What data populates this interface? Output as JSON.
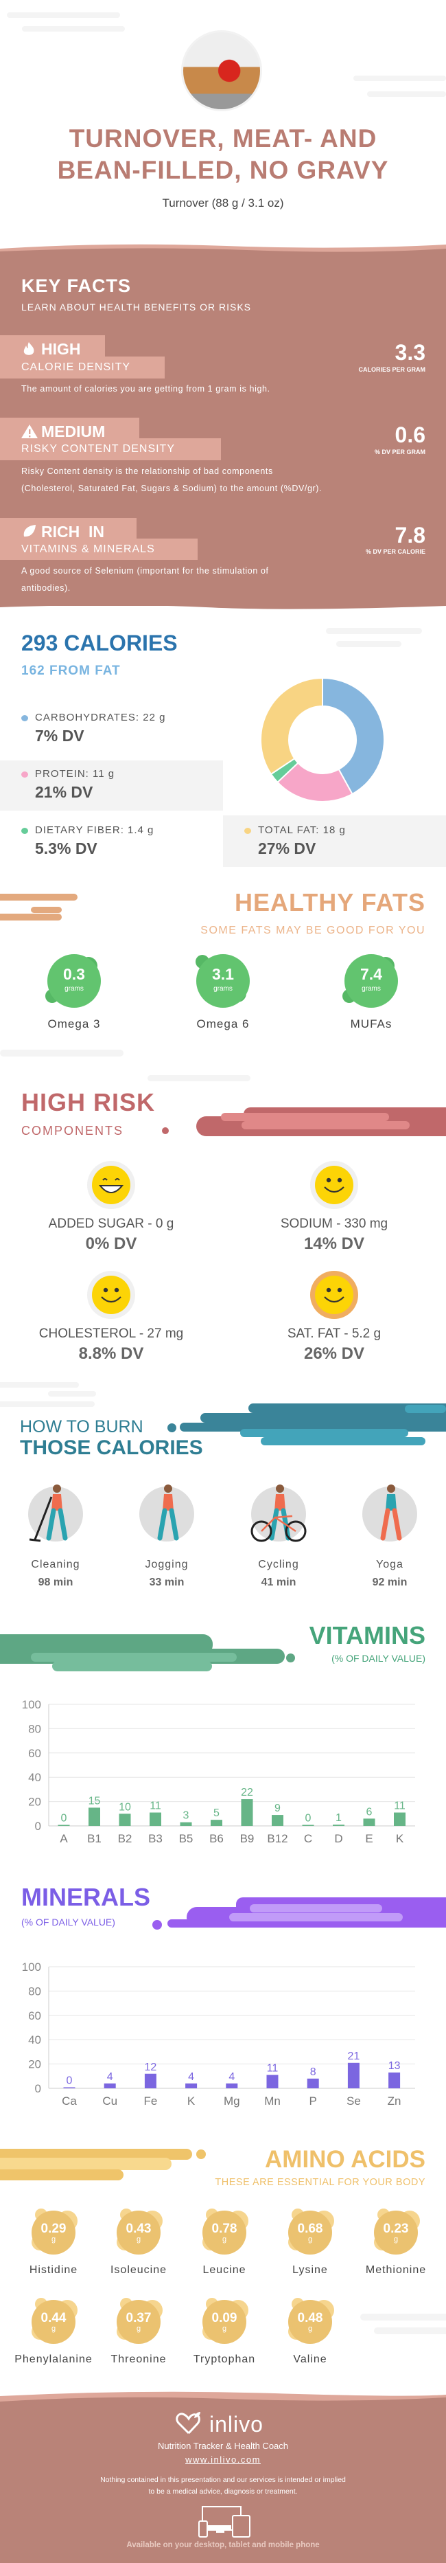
{
  "header": {
    "title_line1": "TURNOVER, MEAT- AND",
    "title_line2": "BEAN-FILLED, NO GRAVY",
    "serving": "Turnover (88 g / 3.1 oz)"
  },
  "key_facts": {
    "title": "KEY FACTS",
    "subtitle": "LEARN ABOUT HEALTH BENEFITS OR RISKS",
    "items": [
      {
        "icon": "fire-icon",
        "level": "HIGH",
        "label": "CALORIE DENSITY",
        "value": "3.3",
        "unit": "CALORIES PER GRAM",
        "description": "The amount of calories you are getting from 1 gram is high."
      },
      {
        "icon": "warning-icon",
        "level": "MEDIUM",
        "label": "RISKY CONTENT DENSITY",
        "value": "0.6",
        "unit": "% DV PER GRAM",
        "description_line1": "Risky Content density is the relationship of bad components",
        "description_line2": "(Cholesterol, Saturated Fat, Sugars & Sodium) to the amount (%DV/gr)."
      },
      {
        "icon": "leaf-icon",
        "level": "RICH  IN",
        "label": "VITAMINS & MINERALS",
        "value": "7.8",
        "unit": "% DV PER CALORIE",
        "description_line1": "A good source of Selenium (important for the stimulation of",
        "description_line2": "antibodies)."
      }
    ]
  },
  "calories": {
    "total": "293 CALORIES",
    "from_fat": "162 FROM FAT",
    "macros": [
      {
        "label": "CARBOHYDRATES: 22 g",
        "dv": "7% DV"
      },
      {
        "label": "PROTEIN: 11 g",
        "dv": "21% DV"
      },
      {
        "label": "DIETARY FIBER: 1.4 g",
        "dv": "5.3% DV"
      },
      {
        "label": "TOTAL FAT: 18 g",
        "dv": "27% DV"
      }
    ]
  },
  "healthy_fats": {
    "title": "HEALTHY FATS",
    "subtitle": "SOME FATS MAY BE GOOD FOR YOU",
    "items": [
      {
        "value": "0.3",
        "unit": "grams",
        "label": "Omega 3"
      },
      {
        "value": "3.1",
        "unit": "grams",
        "label": "Omega 6"
      },
      {
        "value": "7.4",
        "unit": "grams",
        "label": "MUFAs"
      }
    ]
  },
  "high_risk": {
    "title": "HIGH RISK",
    "subtitle": "COMPONENTS",
    "items": [
      {
        "label": "ADDED SUGAR - 0 g",
        "dv": "0% DV",
        "icon": "grinning-face-icon"
      },
      {
        "label": "SODIUM - 330 mg",
        "dv": "14% DV",
        "icon": "smiling-face-icon"
      },
      {
        "label": "CHOLESTEROL - 27 mg",
        "dv": "8.8% DV",
        "icon": "smiling-face-icon"
      },
      {
        "label": "SAT. FAT - 5.2 g",
        "dv": "26% DV",
        "icon": "smiling-face-icon"
      }
    ]
  },
  "burn": {
    "title_line1": "HOW TO BURN",
    "title_line2": "THOSE CALORIES",
    "activities": [
      {
        "name": "Cleaning",
        "duration": "98 min"
      },
      {
        "name": "Jogging",
        "duration": "33 min"
      },
      {
        "name": "Cycling",
        "duration": "41 min"
      },
      {
        "name": "Yoga",
        "duration": "92 min"
      }
    ]
  },
  "vitamins": {
    "title": "VITAMINS",
    "subtitle": "(% OF DAILY VALUE)"
  },
  "minerals": {
    "title": "MINERALS",
    "subtitle": "(% OF DAILY VALUE)"
  },
  "amino": {
    "title": "AMINO ACIDS",
    "subtitle": "THESE ARE ESSENTIAL FOR YOUR BODY",
    "items": [
      {
        "value": "0.29",
        "unit": "g",
        "name": "Histidine"
      },
      {
        "value": "0.43",
        "unit": "g",
        "name": "Isoleucine"
      },
      {
        "value": "0.78",
        "unit": "g",
        "name": "Leucine"
      },
      {
        "value": "0.68",
        "unit": "g",
        "name": "Lysine"
      },
      {
        "value": "0.23",
        "unit": "g",
        "name": "Methionine"
      },
      {
        "value": "0.44",
        "unit": "g",
        "name": "Phenylalanine"
      },
      {
        "value": "0.37",
        "unit": "g",
        "name": "Threonine"
      },
      {
        "value": "0.09",
        "unit": "g",
        "name": "Tryptophan"
      },
      {
        "value": "0.48",
        "unit": "g",
        "name": "Valine"
      }
    ]
  },
  "footer": {
    "brand": "inlivo",
    "tagline": "Nutrition Tracker & Health Coach",
    "url": "www.inlivo.com",
    "disclaimer_line1": "Nothing contained in this presentation and our services is intended or implied",
    "disclaimer_line2": "to be a medical advice, diagnosis or treatment.",
    "available": "Available on your desktop, tablet and mobile phone"
  },
  "colors": {
    "brand_brown": "#b98378",
    "carbohydrates": "#86b6de",
    "protein": "#f7a6c8",
    "fiber": "#66cc99",
    "fat": "#f8d483",
    "vitamins": "#66b587",
    "minerals": "#7b66e0",
    "amino": "#ebc270"
  },
  "chart_data": [
    {
      "type": "pie",
      "categories": [
        "Carbohydrates",
        "Protein",
        "Dietary Fiber",
        "Total Fat"
      ],
      "values": [
        22,
        11,
        1.4,
        18
      ],
      "colors": [
        "#86b6de",
        "#f7a6c8",
        "#66cc99",
        "#f8d483"
      ],
      "donut": true
    },
    {
      "type": "bar",
      "categories": [
        "A",
        "B1",
        "B2",
        "B3",
        "B5",
        "B6",
        "B9",
        "B12",
        "C",
        "D",
        "E",
        "K"
      ],
      "values": [
        0,
        15,
        10,
        11,
        3,
        5,
        22,
        9,
        0,
        1,
        6,
        11
      ],
      "ylim": [
        0,
        100
      ],
      "yticks": [
        0,
        20,
        40,
        60,
        80,
        100
      ],
      "grid": true,
      "color": "#66b587"
    },
    {
      "type": "bar",
      "categories": [
        "Ca",
        "Cu",
        "Fe",
        "K",
        "Mg",
        "Mn",
        "P",
        "Se",
        "Zn"
      ],
      "values": [
        0,
        4,
        12,
        4,
        4,
        11,
        8,
        21,
        13
      ],
      "ylim": [
        0,
        100
      ],
      "yticks": [
        0,
        20,
        40,
        60,
        80,
        100
      ],
      "grid": true,
      "color": "#7b66e0"
    }
  ]
}
